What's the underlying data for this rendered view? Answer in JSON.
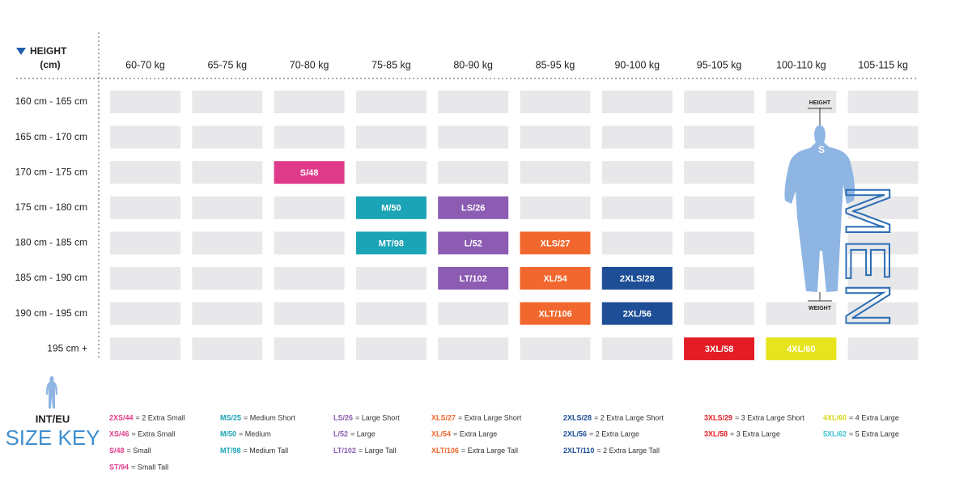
{
  "header": {
    "height_label": "HEIGHT",
    "height_unit": "(cm)"
  },
  "weights": [
    "60-70 kg",
    "65-75 kg",
    "70-80 kg",
    "75-85 kg",
    "80-90 kg",
    "85-95 kg",
    "90-100 kg",
    "95-105 kg",
    "100-110 kg",
    "105-115 kg"
  ],
  "rows": [
    {
      "height": "160 cm - 165 cm",
      "cells": [
        null,
        null,
        null,
        null,
        null,
        null,
        null,
        null,
        null,
        null
      ]
    },
    {
      "height": "165 cm - 170 cm",
      "cells": [
        null,
        null,
        null,
        null,
        null,
        null,
        null,
        null,
        null,
        null
      ]
    },
    {
      "height": "170 cm - 175 cm",
      "cells": [
        null,
        null,
        {
          "label": "S/48",
          "color": "#e03b8b"
        },
        null,
        null,
        null,
        null,
        null,
        null,
        null
      ]
    },
    {
      "height": "175 cm - 180 cm",
      "cells": [
        null,
        null,
        null,
        {
          "label": "M/50",
          "color": "#1ba3b6"
        },
        {
          "label": "LS/26",
          "color": "#8c5cb3"
        },
        null,
        null,
        null,
        null,
        null
      ]
    },
    {
      "height": "180 cm - 185 cm",
      "cells": [
        null,
        null,
        null,
        {
          "label": "MT/98",
          "color": "#1ba3b6"
        },
        {
          "label": "L/52",
          "color": "#8c5cb3"
        },
        {
          "label": "XLS/27",
          "color": "#f2672d"
        },
        null,
        null,
        null,
        null
      ]
    },
    {
      "height": "185 cm - 190 cm",
      "cells": [
        null,
        null,
        null,
        null,
        {
          "label": "LT/102",
          "color": "#8c5cb3"
        },
        {
          "label": "XL/54",
          "color": "#f2672d"
        },
        {
          "label": "2XLS/28",
          "color": "#1d4e96"
        },
        null,
        null,
        null
      ]
    },
    {
      "height": "190 cm - 195 cm",
      "cells": [
        null,
        null,
        null,
        null,
        null,
        {
          "label": "XLT/106",
          "color": "#f2672d"
        },
        {
          "label": "2XL/56",
          "color": "#1d4e96"
        },
        null,
        null,
        null
      ]
    },
    {
      "height": "195 cm +",
      "cells": [
        null,
        null,
        null,
        null,
        null,
        null,
        null,
        {
          "label": "3XL/58",
          "color": "#e31c25"
        },
        {
          "label": "4XL/60",
          "color": "#e6e41c"
        },
        null
      ]
    }
  ],
  "figure": {
    "height_label": "HEIGHT",
    "weight_label": "WEIGHT",
    "gender": "MEN",
    "logo": "S"
  },
  "key": {
    "title": "INT/EU",
    "subtitle": "SIZE KEY",
    "groups": [
      {
        "color": "#e03b8b",
        "items": [
          {
            "code": "2XS/44",
            "desc": "= 2 Extra Small"
          },
          {
            "code": "XS/46",
            "desc": "= Extra Small"
          },
          {
            "code": "S/48",
            "desc": "= Small"
          },
          {
            "code": "ST/94",
            "desc": "= Small Tall"
          }
        ]
      },
      {
        "color": "#1ba3b6",
        "items": [
          {
            "code": "MS/25",
            "desc": "= Medium Short"
          },
          {
            "code": "M/50",
            "desc": "= Medium"
          },
          {
            "code": "MT/98",
            "desc": "= Medium Tall"
          }
        ]
      },
      {
        "color": "#8c5cb3",
        "items": [
          {
            "code": "LS/26",
            "desc": "= Large Short"
          },
          {
            "code": "L/52",
            "desc": "= Large"
          },
          {
            "code": "LT/102",
            "desc": "= Large Tall"
          }
        ]
      },
      {
        "color": "#f2672d",
        "items": [
          {
            "code": "XLS/27",
            "desc": "= Extra Large Short"
          },
          {
            "code": "XL/54",
            "desc": "= Extra Large"
          },
          {
            "code": "XLT/106",
            "desc": "= Extra Large Tall"
          }
        ]
      },
      {
        "color": "#1d4e96",
        "items": [
          {
            "code": "2XLS/28",
            "desc": "= 2 Extra Large Short"
          },
          {
            "code": "2XL/56",
            "desc": "= 2 Extra Large"
          },
          {
            "code": "2XLT/110",
            "desc": "= 2 Extra Large Tall"
          }
        ]
      },
      {
        "color": "#e31c25",
        "items": [
          {
            "code": "3XLS/29",
            "desc": "= 3 Extra Large Short"
          },
          {
            "code": "3XL/58",
            "desc": "= 3 Extra Large"
          }
        ]
      },
      {
        "color": "#d9d61a",
        "items": [
          {
            "code": "4XL/60",
            "desc": "= 4 Extra Large"
          }
        ]
      },
      {
        "color": "#3cc3d2",
        "items": [
          {
            "code": "5XL/62",
            "desc": "= 5 Extra Large"
          }
        ]
      }
    ]
  }
}
